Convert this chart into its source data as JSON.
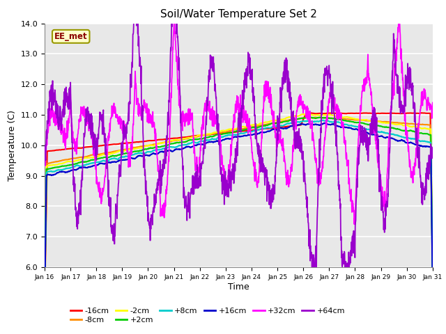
{
  "title": "Soil/Water Temperature Set 2",
  "xlabel": "Time",
  "ylabel": "Temperature (C)",
  "ylim": [
    6.0,
    14.0
  ],
  "yticks": [
    6.0,
    7.0,
    8.0,
    9.0,
    10.0,
    11.0,
    12.0,
    13.0,
    14.0
  ],
  "xtick_labels": [
    "Jan 16",
    "Jan 17",
    "Jan 18",
    "Jan 19",
    "Jan 20",
    "Jan 21",
    "Jan 22",
    "Jan 23",
    "Jan 24",
    "Jan 25",
    "Jan 26",
    "Jan 27",
    "Jan 28",
    "Jan 29",
    "Jan 30",
    "Jan 31"
  ],
  "series_colors": {
    "-16cm": "#FF0000",
    "-8cm": "#FF8C00",
    "-2cm": "#FFFF00",
    "+2cm": "#00CC00",
    "+8cm": "#00CCCC",
    "+16cm": "#0000CC",
    "+32cm": "#FF00FF",
    "+64cm": "#9900CC"
  },
  "watermark": "EE_met",
  "plot_background": "#E8E8E8",
  "n_points": 1500,
  "days": 15
}
